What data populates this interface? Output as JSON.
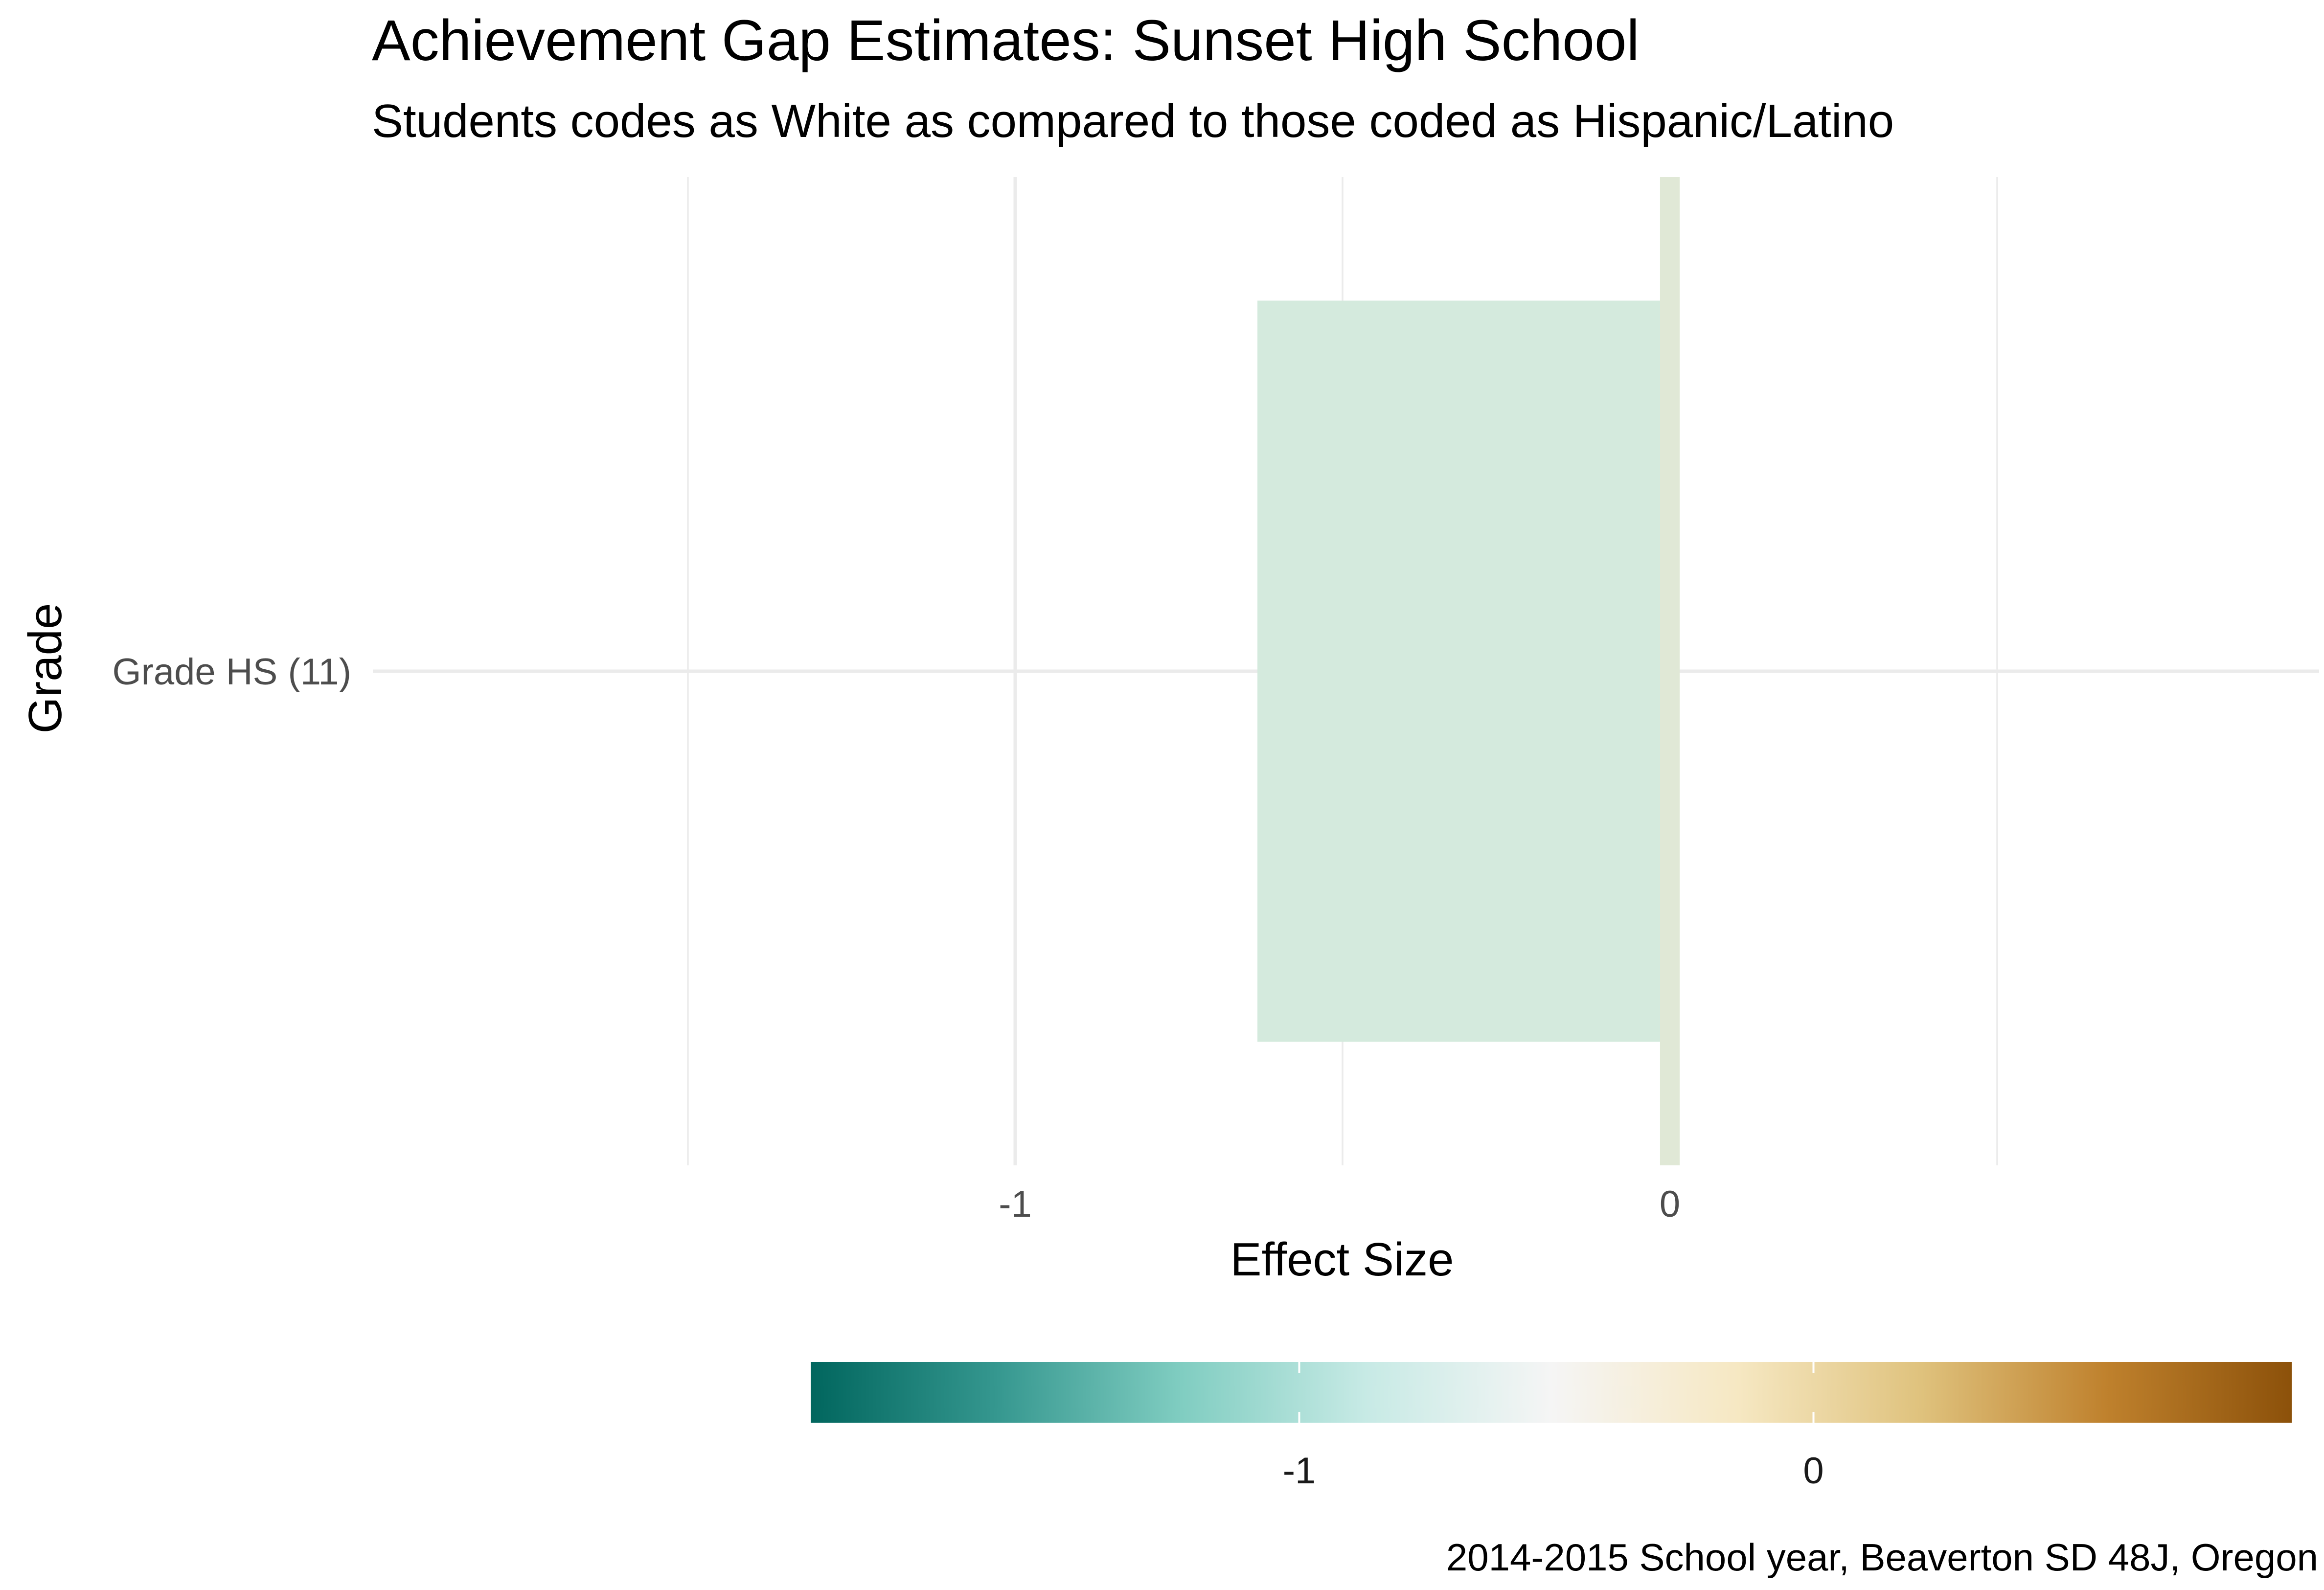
{
  "chart_data": {
    "type": "bar",
    "orientation": "horizontal",
    "title": "Achievement Gap Estimates: Sunset High School",
    "subtitle": "Students codes as White as compared to those coded as Hispanic/Latino",
    "xlabel": "Effect Size",
    "ylabel": "Grade",
    "caption": "2014-2015 School year, Beaverton SD 48J, Oregon",
    "categories": [
      "Grade HS (11)"
    ],
    "series": [
      {
        "values": [
          -0.63
        ],
        "fill": "#d4eadd"
      }
    ],
    "reference_line": {
      "x": 0,
      "width": 0.03,
      "color": "#e0e8d6"
    },
    "xlim": [
      -1.5,
      0.5
    ],
    "x_ticks": [
      -1,
      0
    ],
    "x_tick_labels": [
      "-1",
      "0"
    ],
    "grid": true,
    "legend": {
      "type": "colorbar",
      "position": "bottom",
      "range": [
        -1.95,
        0.93
      ],
      "ticks": [
        -1,
        0
      ],
      "tick_labels": [
        "-1",
        "0"
      ],
      "palette": [
        "#01665e",
        "#35978f",
        "#80cdc1",
        "#c7eae5",
        "#f5f5f5",
        "#f6e8c3",
        "#dfc27d",
        "#bf812d",
        "#8c510a"
      ]
    }
  }
}
